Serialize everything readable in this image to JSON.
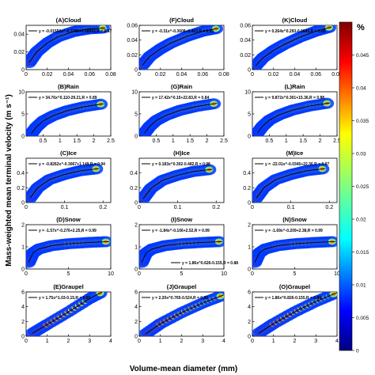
{
  "figure": {
    "ylabel": "Mass-weighted mean terminal velocity (m s⁻¹)",
    "xlabel": "Volume-mean diameter (mm)",
    "colorbar": {
      "unit": "%",
      "ticks": [
        "0.045",
        "0.04",
        "0.035",
        "0.03",
        "0.025",
        "0.02",
        "0.015",
        "0.01",
        "0.005",
        "0"
      ],
      "colors": [
        "#00007f",
        "#0000ff",
        "#007fff",
        "#00ffff",
        "#7fff7f",
        "#ffff00",
        "#ff7f00",
        "#ff0000",
        "#7f0000"
      ]
    }
  },
  "chart_data": [
    {
      "type": "heatmap",
      "title": "(A)Cloud",
      "equation": "y = -0.01550x^-0.3786+0.08943,R = 0.67",
      "xlim": [
        0,
        0.08
      ],
      "ylim": [
        0,
        0.05
      ],
      "xticks": [
        "0",
        "0.02",
        "0.04",
        "0.06",
        "0.08"
      ],
      "yticks": [
        "0",
        "0.02",
        "0.04"
      ],
      "fit": [
        [
          0.003,
          0.008
        ],
        [
          0.01,
          0.02
        ],
        [
          0.02,
          0.03
        ],
        [
          0.03,
          0.037
        ],
        [
          0.045,
          0.043
        ],
        [
          0.06,
          0.046
        ],
        [
          0.075,
          0.047
        ]
      ]
    },
    {
      "type": "heatmap",
      "title": "(F)Cloud",
      "equation": "y = -0.31x^-0.3608+0.413,R = 0.81",
      "xlim": [
        0,
        0.08
      ],
      "ylim": [
        0,
        0.06
      ],
      "xticks": [
        "0",
        "0.02",
        "0.04",
        "0.06",
        "0.08"
      ],
      "yticks": [
        "0",
        "0.02",
        "0.04",
        "0.06"
      ],
      "fit": [
        [
          0.003,
          0.006
        ],
        [
          0.01,
          0.018
        ],
        [
          0.02,
          0.028
        ],
        [
          0.03,
          0.036
        ],
        [
          0.045,
          0.045
        ],
        [
          0.06,
          0.052
        ],
        [
          0.075,
          0.056
        ]
      ]
    },
    {
      "type": "heatmap",
      "title": "(K)Cloud",
      "equation": "y = 0.264x^0.293-0.0641,R = 0.89",
      "xlim": [
        0,
        0.08
      ],
      "ylim": [
        0,
        0.06
      ],
      "xticks": [
        "0",
        "0.02",
        "0.04",
        "0.06",
        "0.08"
      ],
      "yticks": [
        "0",
        "0.02",
        "0.04",
        "0.06"
      ],
      "fit": [
        [
          0.003,
          0.005
        ],
        [
          0.01,
          0.016
        ],
        [
          0.02,
          0.026
        ],
        [
          0.03,
          0.034
        ],
        [
          0.045,
          0.044
        ],
        [
          0.06,
          0.052
        ],
        [
          0.075,
          0.058
        ]
      ]
    },
    {
      "type": "heatmap",
      "title": "(B)Rain",
      "equation": "y = 34.76x^0.110-29.21,R = 0.89",
      "xlim": [
        0,
        2.5
      ],
      "ylim": [
        0,
        10
      ],
      "xticks": [
        "0.5",
        "1",
        "1.5",
        "2",
        "2.5"
      ],
      "yticks": [
        "0",
        "5",
        "10"
      ],
      "fit": [
        [
          0.15,
          0.5
        ],
        [
          0.3,
          2.0
        ],
        [
          0.5,
          3.4
        ],
        [
          0.8,
          4.6
        ],
        [
          1.2,
          5.7
        ],
        [
          1.7,
          6.6
        ],
        [
          2.3,
          7.3
        ]
      ]
    },
    {
      "type": "heatmap",
      "title": "(G)Rain",
      "equation": "y = 17.42x^0.15+22.83,R = 0.84",
      "xlim": [
        0,
        2.5
      ],
      "ylim": [
        0,
        10
      ],
      "xticks": [
        "0.5",
        "1",
        "1.5",
        "2",
        "2.5"
      ],
      "yticks": [
        "0",
        "5",
        "10"
      ],
      "fit": [
        [
          0.15,
          0.6
        ],
        [
          0.3,
          2.1
        ],
        [
          0.5,
          3.5
        ],
        [
          0.8,
          4.7
        ],
        [
          1.2,
          5.8
        ],
        [
          1.7,
          6.7
        ],
        [
          2.3,
          7.4
        ]
      ]
    },
    {
      "type": "heatmap",
      "title": "(L)Rain",
      "equation": "y = 9.872x^0.301+15.36,R = 0.88",
      "xlim": [
        0,
        2.5
      ],
      "ylim": [
        0,
        10
      ],
      "xticks": [
        "0.5",
        "1",
        "1.5",
        "2",
        "2.5"
      ],
      "yticks": [
        "0",
        "5",
        "10"
      ],
      "fit": [
        [
          0.15,
          0.7
        ],
        [
          0.3,
          2.2
        ],
        [
          0.5,
          3.6
        ],
        [
          0.8,
          4.8
        ],
        [
          1.2,
          5.9
        ],
        [
          1.7,
          6.8
        ],
        [
          2.3,
          7.5
        ]
      ]
    },
    {
      "type": "heatmap",
      "title": "(C)Ice",
      "equation": "y = -0.8262x^-0.3067+1.149,R = 0.94",
      "xlim": [
        0,
        0.22
      ],
      "ylim": [
        0,
        0.6
      ],
      "xticks": [
        "0",
        "0.1",
        "0.2"
      ],
      "yticks": [
        "0",
        "0.2",
        "0.4"
      ],
      "fit": [
        [
          0.01,
          0.06
        ],
        [
          0.03,
          0.2
        ],
        [
          0.06,
          0.31
        ],
        [
          0.1,
          0.38
        ],
        [
          0.14,
          0.43
        ],
        [
          0.19,
          0.46
        ]
      ]
    },
    {
      "type": "heatmap",
      "title": "(H)Ice",
      "equation": "y = 0.183x^0.302-0.482,R = 0.98",
      "xlim": [
        0,
        0.22
      ],
      "ylim": [
        0,
        0.6
      ],
      "xticks": [
        "0",
        "0.1",
        "0.2"
      ],
      "yticks": [
        "0",
        "0.2",
        "0.4"
      ],
      "fit": [
        [
          0.01,
          0.05
        ],
        [
          0.03,
          0.19
        ],
        [
          0.06,
          0.3
        ],
        [
          0.1,
          0.37
        ],
        [
          0.14,
          0.42
        ],
        [
          0.19,
          0.45
        ]
      ]
    },
    {
      "type": "heatmap",
      "title": "(M)Ice",
      "equation": "y = -22.01x^-0.0345+22.36,R = 0.97",
      "xlim": [
        0,
        0.22
      ],
      "ylim": [
        0,
        0.6
      ],
      "xticks": [
        "0",
        "0.1",
        "0.2"
      ],
      "yticks": [
        "0",
        "0.2",
        "0.4"
      ],
      "fit": [
        [
          0.01,
          0.06
        ],
        [
          0.03,
          0.2
        ],
        [
          0.06,
          0.31
        ],
        [
          0.1,
          0.38
        ],
        [
          0.14,
          0.43
        ],
        [
          0.19,
          0.46
        ]
      ]
    },
    {
      "type": "heatmap",
      "title": "(D)Snow",
      "equation": "y = -1.57x^-0.276+2.25,R = 0.99",
      "xlim": [
        0,
        10
      ],
      "ylim": [
        0,
        2
      ],
      "xticks": [
        "0",
        "5",
        "10"
      ],
      "yticks": [
        "0",
        "1",
        "2"
      ],
      "fit": [
        [
          0.3,
          0.3
        ],
        [
          0.8,
          0.72
        ],
        [
          1.5,
          0.9
        ],
        [
          3,
          1.05
        ],
        [
          5,
          1.14
        ],
        [
          7.5,
          1.2
        ],
        [
          9.8,
          1.24
        ]
      ]
    },
    {
      "type": "heatmap",
      "title": "(I)Snow",
      "equation": "y = -1.84x^-0.106+2.52,R = 0.99",
      "xlim": [
        0,
        10
      ],
      "ylim": [
        0,
        2
      ],
      "xticks": [
        "0",
        "5",
        "10"
      ],
      "yticks": [
        "0",
        "1",
        "2"
      ],
      "fit": [
        [
          0.3,
          0.3
        ],
        [
          0.8,
          0.72
        ],
        [
          1.5,
          0.9
        ],
        [
          3,
          1.05
        ],
        [
          5,
          1.14
        ],
        [
          7.5,
          1.2
        ],
        [
          9.8,
          1.24
        ]
      ]
    },
    {
      "type": "heatmap",
      "title": "(N)Snow",
      "equation": "y = -1.69x^-0.209+2.38,R = 0.99",
      "xlim": [
        0,
        10
      ],
      "ylim": [
        0,
        2
      ],
      "xticks": [
        "0",
        "5",
        "10"
      ],
      "yticks": [
        "0",
        "1",
        "2"
      ],
      "fit": [
        [
          0.3,
          0.3
        ],
        [
          0.8,
          0.72
        ],
        [
          1.5,
          0.9
        ],
        [
          3,
          1.05
        ],
        [
          5,
          1.14
        ],
        [
          7.5,
          1.2
        ],
        [
          9.8,
          1.24
        ]
      ]
    },
    {
      "type": "heatmap",
      "title": "(E)Graupel",
      "equation": "y = 1.75x^1.03-0.15,R = 0.85",
      "xlim": [
        0,
        4
      ],
      "ylim": [
        0,
        6
      ],
      "xticks": [
        "0",
        "1",
        "2",
        "3",
        "4"
      ],
      "yticks": [
        "0",
        "2",
        "4",
        "6"
      ],
      "fit": [
        [
          0.3,
          0.4
        ],
        [
          1,
          1.6
        ],
        [
          2,
          3.3
        ],
        [
          3,
          5.1
        ],
        [
          3.6,
          6
        ]
      ]
    },
    {
      "type": "heatmap",
      "title": "(J)Graupel",
      "equation": "y = 2.20x^0.765-0.524,R = 0.90",
      "xlim": [
        0,
        4
      ],
      "ylim": [
        0,
        6
      ],
      "xticks": [
        "0",
        "1",
        "2",
        "3",
        "4"
      ],
      "yticks": [
        "0",
        "2",
        "4",
        "6"
      ],
      "fit": [
        [
          0.3,
          0.3
        ],
        [
          1,
          1.7
        ],
        [
          2,
          3.2
        ],
        [
          3,
          4.5
        ],
        [
          4,
          5.6
        ]
      ]
    },
    {
      "type": "heatmap",
      "title": "(O)Graupel",
      "equation": "y = 1.86x^0.826-0.155,R = 0.88",
      "xlim": [
        0,
        4
      ],
      "ylim": [
        0,
        6
      ],
      "xticks": [
        "0",
        "1",
        "2",
        "3",
        "4"
      ],
      "yticks": [
        "0",
        "2",
        "4",
        "6"
      ],
      "fit": [
        [
          0.3,
          0.4
        ],
        [
          1,
          1.7
        ],
        [
          2,
          3.3
        ],
        [
          3,
          4.7
        ],
        [
          4,
          5.9
        ]
      ]
    },
    {
      "type": "annotation",
      "equation": "y = 1.86x^0.626-0.155,R = 0.88",
      "panel_ref": "(I)Snow"
    }
  ]
}
